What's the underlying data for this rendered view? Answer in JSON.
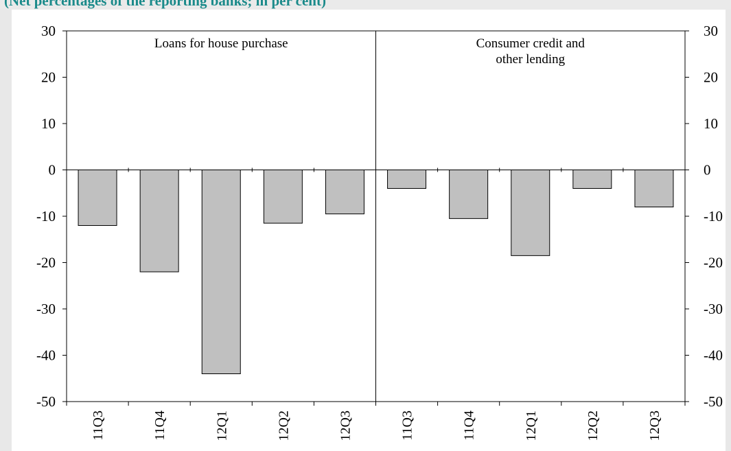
{
  "header": {
    "text": "(Net percentages of the reporting banks; in per cent)"
  },
  "chart_data": {
    "type": "bar",
    "panels": [
      {
        "label": "Loans for house purchase"
      },
      {
        "label": "Consumer credit and\nother lending"
      }
    ],
    "categories": [
      "11Q3",
      "11Q4",
      "12Q1",
      "12Q2",
      "12Q3",
      "11Q3",
      "11Q4",
      "12Q1",
      "12Q2",
      "12Q3"
    ],
    "values": [
      -12,
      -22,
      -44,
      -11.5,
      -9.5,
      -4,
      -10.5,
      -18.5,
      -4,
      -8
    ],
    "ylim": [
      -50,
      30
    ],
    "yticks": [
      30,
      20,
      10,
      0,
      -10,
      -20,
      -30,
      -40,
      -50
    ],
    "ytick_labels": [
      "30",
      "20",
      "10",
      "0",
      "-10",
      "-20",
      "-30",
      "-40",
      "-50"
    ],
    "grid": false,
    "colors": {
      "bar_fill": "#c0c0c0",
      "bar_stroke": "#000000",
      "header": "#1a8a8a"
    }
  }
}
